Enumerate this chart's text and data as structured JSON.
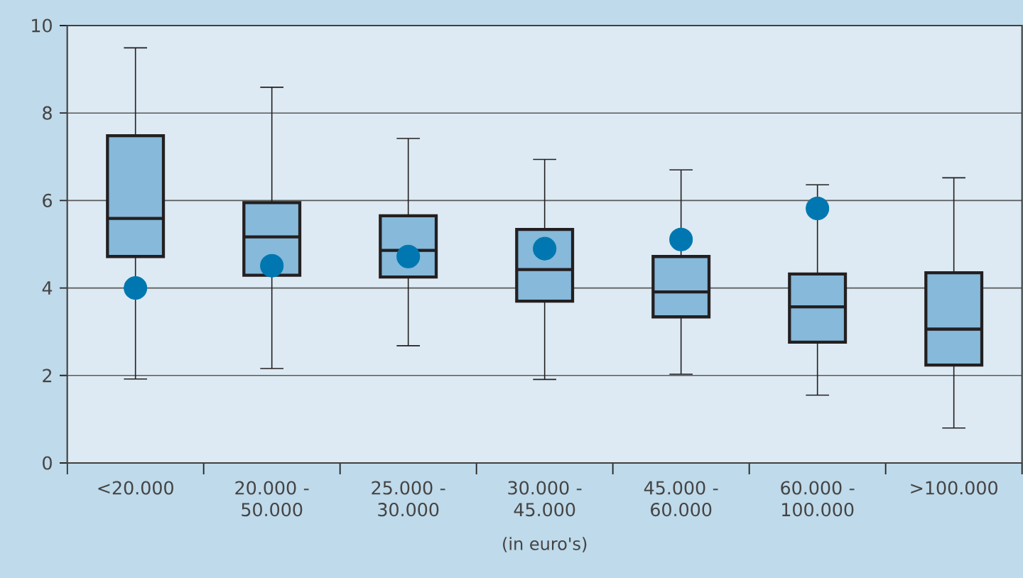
{
  "chart_data": {
    "type": "box",
    "xlabel": "(in euro's)",
    "categories": [
      "<20.000",
      "20.000 - 50.000",
      "25.000 - 30.000",
      "30.000 - 45.000",
      "45.000 - 60.000",
      "60.000 - 100.000",
      ">100.000"
    ],
    "series": [
      {
        "color": "#86b9da",
        "boxes": [
          {
            "low": 1.92,
            "q1": 4.72,
            "median": 5.59,
            "q3": 7.48,
            "high": 9.49
          },
          {
            "low": 2.16,
            "q1": 4.29,
            "median": 5.17,
            "q3": 5.95,
            "high": 8.59
          },
          {
            "low": 2.68,
            "q1": 4.25,
            "median": 4.86,
            "q3": 5.65,
            "high": 7.42
          },
          {
            "low": 1.91,
            "q1": 3.7,
            "median": 4.42,
            "q3": 5.34,
            "high": 6.94
          },
          {
            "low": 2.03,
            "q1": 3.34,
            "median": 3.91,
            "q3": 4.72,
            "high": 6.7
          },
          {
            "low": 1.55,
            "q1": 2.76,
            "median": 3.57,
            "q3": 4.32,
            "high": 6.36
          },
          {
            "low": 0.8,
            "q1": 2.24,
            "median": 3.06,
            "q3": 4.35,
            "high": 6.52
          }
        ]
      },
      {
        "type": "scatter",
        "color": "#0077b0",
        "x": [
          "<20.000",
          "20.000 - 50.000",
          "25.000 - 30.000",
          "30.000 - 45.000",
          "45.000 - 60.000",
          "60.000 - 100.000"
        ],
        "values": [
          4.0,
          4.51,
          4.72,
          4.9,
          5.11,
          5.82
        ]
      }
    ],
    "ylim": [
      0,
      10
    ],
    "yticks": [
      0,
      2,
      4,
      6,
      8,
      10
    ],
    "grid": "y",
    "marker": "circle"
  }
}
